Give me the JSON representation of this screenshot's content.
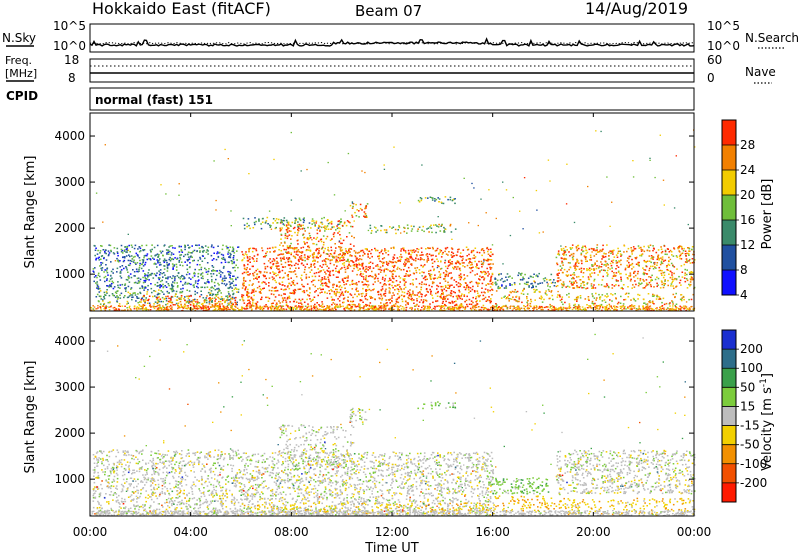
{
  "header": {
    "title": "Hokkaido East (fitACF)",
    "beam": "Beam 07",
    "date": "14/Aug/2019"
  },
  "strip_sky": {
    "label": "N.Sky",
    "y_top": "10^5",
    "y_bottom": "10^0",
    "right_top": "10^5",
    "right_bottom": "10^0",
    "right_label": "N.Search"
  },
  "strip_freq": {
    "label_line1": "Freq.",
    "label_line2": "[MHz]",
    "y_top": "18",
    "y_bottom": "8",
    "right_top": "60",
    "right_bottom": "0",
    "right_label": "Nave"
  },
  "strip_cpid": {
    "label": "CPID",
    "text": "normal (fast) 151"
  },
  "x_axis": {
    "ticks": [
      "00:00",
      "04:00",
      "08:00",
      "12:00",
      "16:00",
      "20:00",
      "00:00"
    ],
    "label": "Time UT"
  },
  "chart_data": [
    {
      "type": "heatmap",
      "parameter": "power",
      "ylabel": "Slant Range [km]",
      "yticks": [
        1000,
        2000,
        3000,
        4000
      ],
      "ylim": [
        200,
        4500
      ],
      "xlim_hours": [
        0,
        24
      ],
      "colorbar": {
        "label": "Power [dB]",
        "ticks": [
          "4",
          "8",
          "12",
          "16",
          "20",
          "24",
          "28"
        ],
        "colors": [
          "#1010ff",
          "#2050a0",
          "#3a8a6a",
          "#6fbe3a",
          "#f2cc00",
          "#f28000",
          "#ff2a00"
        ],
        "range": [
          0,
          32
        ]
      },
      "regions": [
        {
          "t0": 0.1,
          "t1": 5.9,
          "r0": 700,
          "r1": 1650,
          "value": 10,
          "density": 0.55
        },
        {
          "t0": 0.2,
          "t1": 6.0,
          "r0": 350,
          "r1": 700,
          "value": 14,
          "density": 0.5
        },
        {
          "t0": 2.0,
          "t1": 5.8,
          "r0": 250,
          "r1": 550,
          "value": 26,
          "density": 0.6
        },
        {
          "t0": 6.0,
          "t1": 16.0,
          "r0": 250,
          "r1": 1600,
          "value": 28,
          "density": 0.55
        },
        {
          "t0": 7.5,
          "t1": 10.5,
          "r0": 1300,
          "r1": 2200,
          "value": 24,
          "density": 0.35
        },
        {
          "t0": 10.3,
          "t1": 11.0,
          "r0": 2250,
          "r1": 2550,
          "value": 24,
          "density": 0.6
        },
        {
          "t0": 11.0,
          "t1": 14.5,
          "r0": 1900,
          "r1": 2100,
          "value": 18,
          "density": 0.4
        },
        {
          "t0": 13.0,
          "t1": 14.5,
          "r0": 2550,
          "r1": 2700,
          "value": 14,
          "density": 0.55
        },
        {
          "t0": 16.0,
          "t1": 18.5,
          "r0": 700,
          "r1": 1050,
          "value": 12,
          "density": 0.45
        },
        {
          "t0": 16.0,
          "t1": 18.5,
          "r0": 300,
          "r1": 700,
          "value": 22,
          "density": 0.35
        },
        {
          "t0": 18.5,
          "t1": 24.0,
          "r0": 700,
          "r1": 1650,
          "value": 24,
          "density": 0.55
        },
        {
          "t0": 18.5,
          "t1": 24.0,
          "r0": 250,
          "r1": 600,
          "value": 22,
          "density": 0.35
        },
        {
          "t0": 6.0,
          "t1": 10.0,
          "r0": 2000,
          "r1": 2250,
          "value": 14,
          "density": 0.4
        }
      ]
    },
    {
      "type": "heatmap",
      "parameter": "velocity",
      "ylabel": "Slant Range [km]",
      "yticks": [
        1000,
        2000,
        3000,
        4000
      ],
      "ylim": [
        200,
        4500
      ],
      "xlim_hours": [
        0,
        24
      ],
      "colorbar": {
        "label": "Velocity [m s^-1]",
        "ticks": [
          "200",
          "100",
          "50",
          "15",
          "-15",
          "-50",
          "-100",
          "-200"
        ],
        "colors": [
          "#1a2fd0",
          "#2e6e8a",
          "#3aa04a",
          "#7ccc3c",
          "#bdbdbd",
          "#f2d000",
          "#f29000",
          "#f25000",
          "#ff1a00"
        ],
        "range": [
          -250,
          250
        ]
      },
      "regions": [
        {
          "t0": 0.1,
          "t1": 6.0,
          "r0": 250,
          "r1": 1650,
          "value": 0,
          "density": 0.5
        },
        {
          "t0": 6.0,
          "t1": 16.0,
          "r0": 250,
          "r1": 1600,
          "value": 0,
          "density": 0.55
        },
        {
          "t0": 7.5,
          "t1": 10.5,
          "r0": 1300,
          "r1": 2200,
          "value": 0,
          "density": 0.35
        },
        {
          "t0": 10.3,
          "t1": 11.0,
          "r0": 2250,
          "r1": 2550,
          "value": 0,
          "density": 0.6
        },
        {
          "t0": 13.0,
          "t1": 14.5,
          "r0": 2550,
          "r1": 2700,
          "value": 60,
          "density": 0.45
        },
        {
          "t0": 15.8,
          "t1": 18.2,
          "r0": 700,
          "r1": 1050,
          "value": 60,
          "density": 0.6
        },
        {
          "t0": 16.0,
          "t1": 18.5,
          "r0": 300,
          "r1": 650,
          "value": -80,
          "density": 0.4
        },
        {
          "t0": 18.5,
          "t1": 24.0,
          "r0": 700,
          "r1": 1650,
          "value": 0,
          "density": 0.55
        },
        {
          "t0": 18.5,
          "t1": 24.0,
          "r0": 250,
          "r1": 600,
          "value": -60,
          "density": 0.35
        },
        {
          "t0": 6.0,
          "t1": 16.0,
          "r0": 250,
          "r1": 500,
          "value": -60,
          "density": 0.3
        }
      ]
    }
  ]
}
